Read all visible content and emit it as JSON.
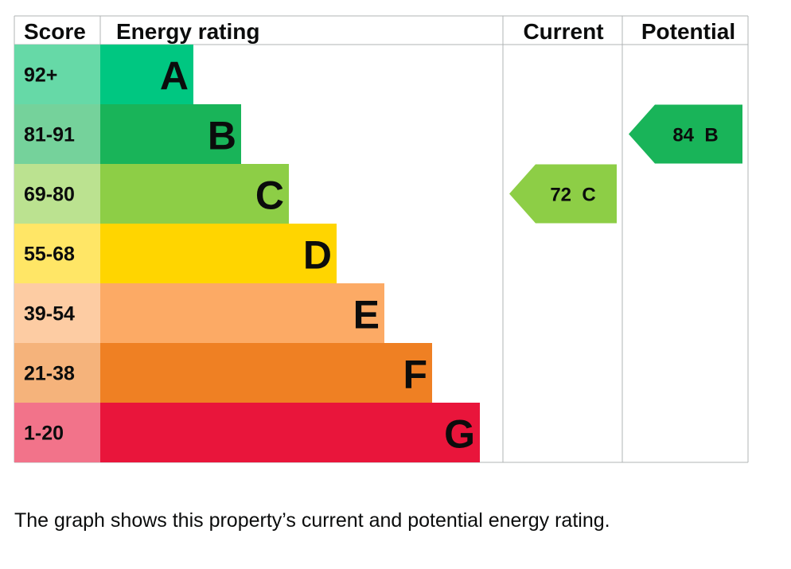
{
  "chart_data": {
    "type": "bar",
    "headers": {
      "score": "Score",
      "rating": "Energy rating",
      "current": "Current",
      "potential": "Potential"
    },
    "bands": [
      {
        "letter": "A",
        "range": "92+",
        "color": "#00c781",
        "score_color": "#66d9a7"
      },
      {
        "letter": "B",
        "range": "81-91",
        "color": "#19b459",
        "score_color": "#75d29b"
      },
      {
        "letter": "C",
        "range": "69-80",
        "color": "#8dce46",
        "score_color": "#bbe290"
      },
      {
        "letter": "D",
        "range": "55-68",
        "color": "#ffd500",
        "score_color": "#ffe666"
      },
      {
        "letter": "E",
        "range": "39-54",
        "color": "#fcaa65",
        "score_color": "#fdcca3"
      },
      {
        "letter": "F",
        "range": "21-38",
        "color": "#ef8023",
        "score_color": "#f5b37b"
      },
      {
        "letter": "G",
        "range": "1-20",
        "color": "#e9153b",
        "score_color": "#f2738a"
      }
    ],
    "current": {
      "value": 72,
      "letter": "C",
      "label": "72  C",
      "color": "#8dce46"
    },
    "potential": {
      "value": 84,
      "letter": "B",
      "label": "84  B",
      "color": "#19b459"
    }
  },
  "caption": "The graph shows this property’s current and potential energy rating."
}
